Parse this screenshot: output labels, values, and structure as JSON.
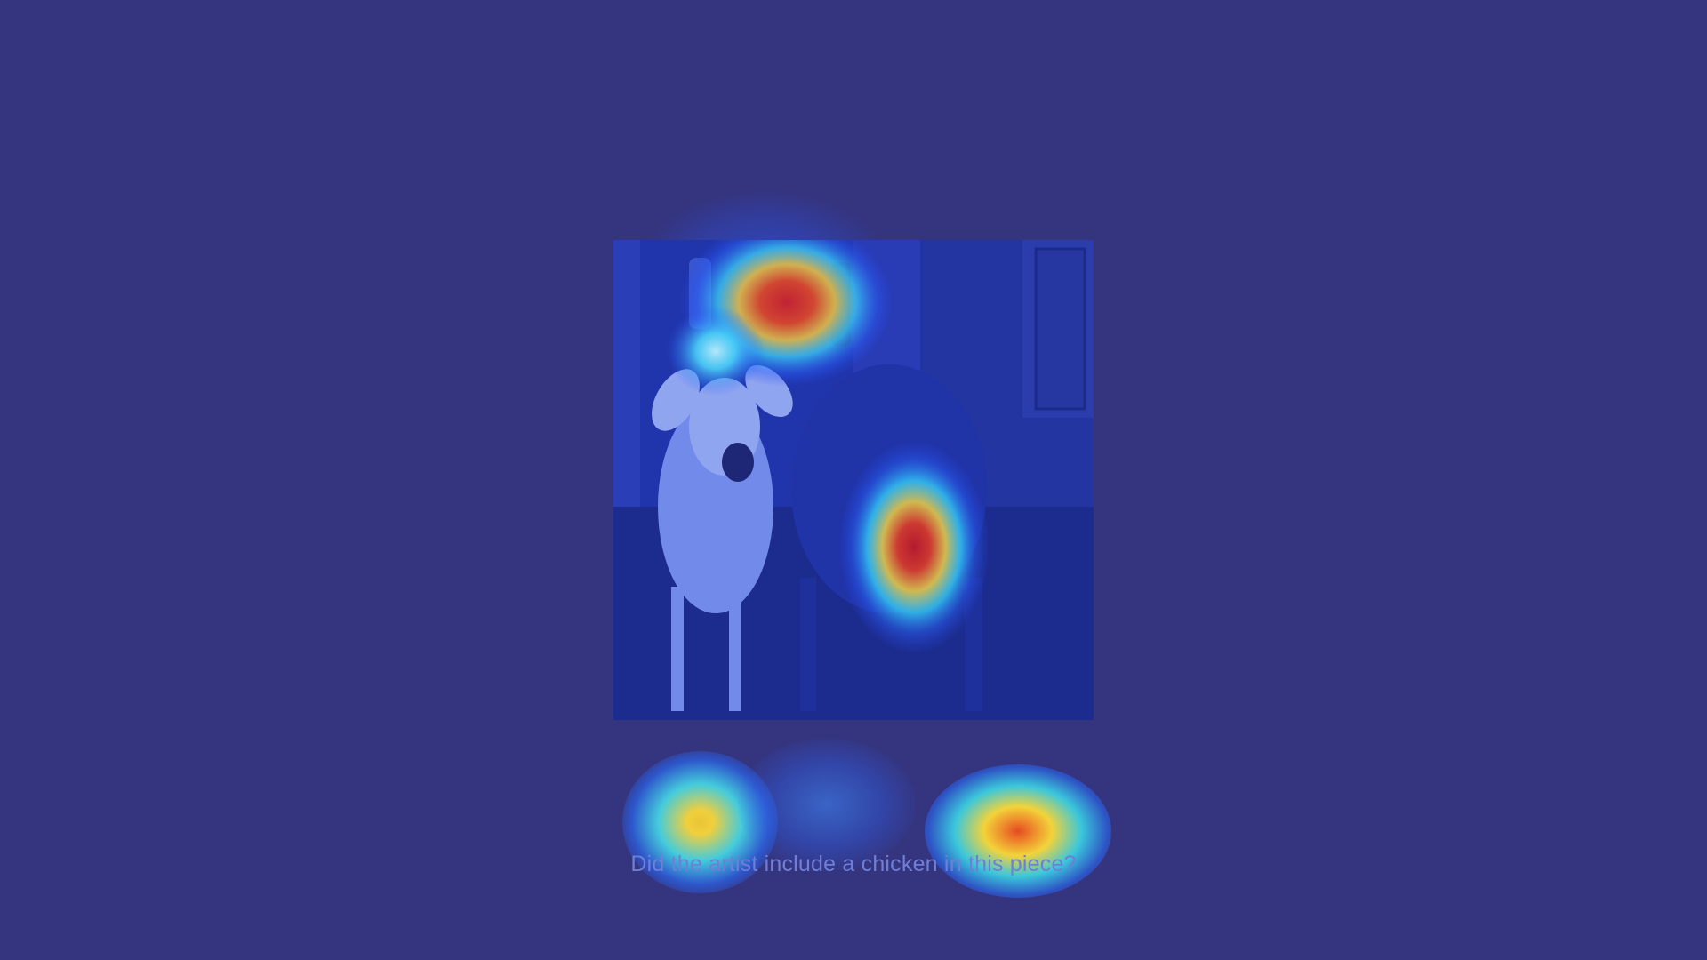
{
  "image": {
    "subject": "two-cows-in-street-photo",
    "overlay": "attention-heatmap"
  },
  "caption": {
    "question": "Did the artist include a chicken in this piece?"
  },
  "colors": {
    "background": "#35347f",
    "heat_low": "#1f3cff",
    "heat_mid": "#33e0ff",
    "heat_warm": "#f2d33a",
    "heat_hot": "#e0281a",
    "caption_text": "#6f7fd6"
  }
}
